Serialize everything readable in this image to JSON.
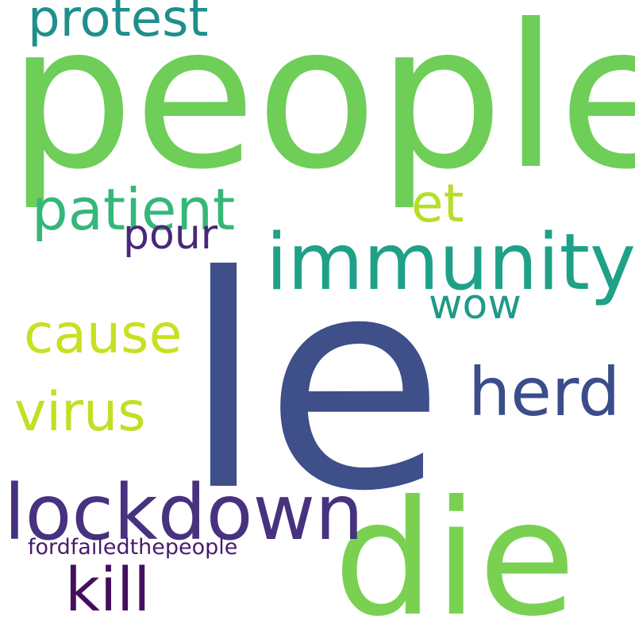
{
  "words": [
    {
      "id": "people",
      "text": "people",
      "color": "#6ece58"
    },
    {
      "id": "le",
      "text": "le",
      "color": "#3e4f8a"
    },
    {
      "id": "die",
      "text": "die",
      "color": "#7ad151"
    },
    {
      "id": "immunity",
      "text": "immunity",
      "color": "#1fa187"
    },
    {
      "id": "lockdown",
      "text": "lockdown",
      "color": "#46327e"
    },
    {
      "id": "herd",
      "text": "herd",
      "color": "#3b4d8a"
    },
    {
      "id": "patient",
      "text": "patient",
      "color": "#35b779"
    },
    {
      "id": "protest",
      "text": "protest",
      "color": "#1f8f8a"
    },
    {
      "id": "cause",
      "text": "cause",
      "color": "#c8e020"
    },
    {
      "id": "virus",
      "text": "virus",
      "color": "#c2df23"
    },
    {
      "id": "kill",
      "text": "kill",
      "color": "#440f5e"
    },
    {
      "id": "et",
      "text": "et",
      "color": "#b5de2b"
    },
    {
      "id": "pour",
      "text": "pour",
      "color": "#482878"
    },
    {
      "id": "wow",
      "text": "wow",
      "color": "#1f9a8a"
    },
    {
      "id": "fordfailedthepeople",
      "text": "fordfailedthepeople",
      "color": "#481b6d"
    }
  ]
}
